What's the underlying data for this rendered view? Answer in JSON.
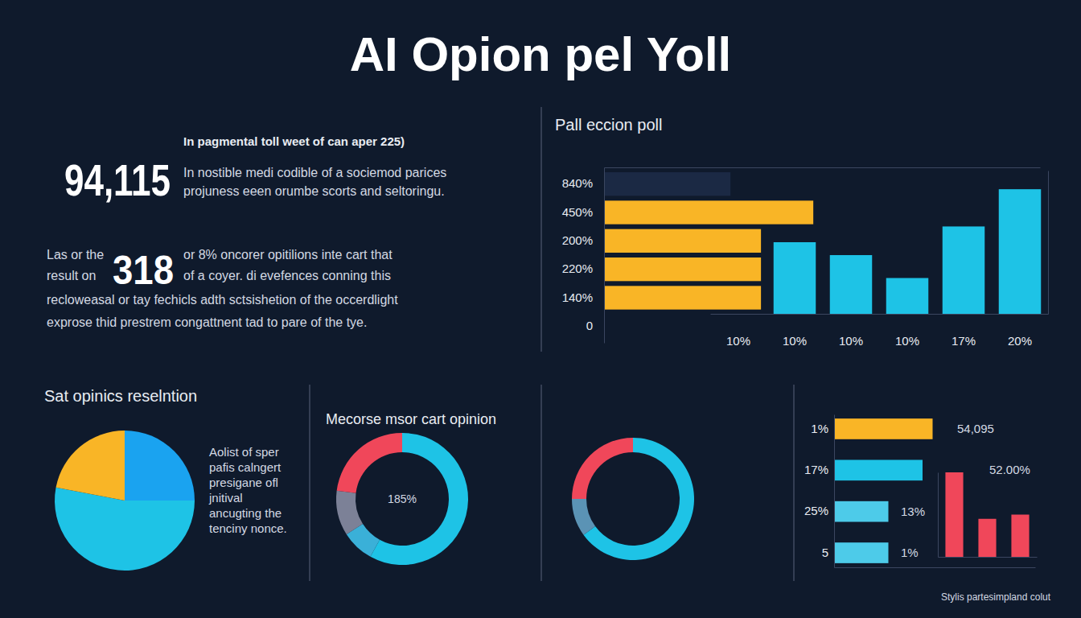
{
  "title": "AI Opion pel Yoll",
  "intro": {
    "heading": "In pagmental toll weet of can aper 225)",
    "stat": "94,115",
    "lines": [
      "In nostible medi codible of a sociemod parices",
      "projuness eeen orumbe scorts and seltoringu."
    ]
  },
  "detail": {
    "lead": [
      "Las or the",
      "result on"
    ],
    "stat": "318",
    "lines": [
      "or 8% oncorer opitilions inte cart that",
      "of a coyer. di evefences conning this"
    ],
    "body": [
      "recloweasal or tay fechicls adth sctsishetion of the occerdlight",
      "exprose thid prestrem congattnent tad to pare of the tye."
    ]
  },
  "footer": "Stylis partesimpland colut",
  "chart_data": [
    {
      "type": "bar",
      "title": "Pall eccion poll",
      "orientation": "horizontal",
      "categories": [
        "840%",
        "450%",
        "200%",
        "220%",
        "140%",
        "0"
      ],
      "values": [
        29,
        48,
        36,
        36,
        36,
        null
      ],
      "colors": [
        "#1b2944",
        "#f9b526",
        "#f9b526",
        "#f9b526",
        "#f9b526",
        "#f9b526"
      ],
      "xlim": [
        0,
        100
      ],
      "tick_labels": "y"
    },
    {
      "type": "bar",
      "categories": [
        "10%",
        "10%",
        "10%",
        "10%",
        "17%",
        "20%"
      ],
      "values": [
        null,
        50,
        41,
        25,
        61,
        87
      ],
      "color": "#1ec3e6",
      "ylim": [
        0,
        100
      ],
      "tick_labels": "x"
    },
    {
      "type": "pie",
      "title": "Sat opinics reselntion",
      "values": [
        25,
        53,
        22
      ],
      "colors": [
        "#1aa3f0",
        "#1ec3e6",
        "#f9b526"
      ],
      "annotations": [
        "Aolist of sper",
        "pafis calngert",
        "presigane ofl",
        "jnitival",
        "ancugting the",
        "tenciny nonce."
      ]
    },
    {
      "type": "donut",
      "title": "Mecorse msor cart opinion",
      "values": [
        58,
        8,
        11,
        23
      ],
      "colors": [
        "#1ec3e6",
        "#3ab0d8",
        "#7c8197",
        "#f0475a"
      ],
      "annotations": [
        "185%"
      ]
    },
    {
      "type": "donut",
      "values": [
        65,
        10,
        25
      ],
      "colors": [
        "#1ec3e6",
        "#5b93b5",
        "#f0475a"
      ]
    },
    {
      "type": "bar",
      "orientation": "horizontal",
      "categories": [
        "1%",
        "17%",
        "25%",
        "5"
      ],
      "values": [
        49,
        44,
        27,
        27
      ],
      "colors": [
        "#f9b526",
        "#1ec3e6",
        "#4dcbe9",
        "#4dcbe9"
      ],
      "xlim": [
        0,
        100
      ],
      "tick_labels": "y",
      "annotations": [
        "54,095",
        "52.00%",
        "13%",
        "1%"
      ]
    },
    {
      "type": "bar",
      "categories": [
        null,
        null,
        null
      ],
      "values": [
        100,
        45,
        50
      ],
      "color": "#f0475a",
      "ylim": [
        0,
        100
      ],
      "tick_labels": false
    }
  ]
}
